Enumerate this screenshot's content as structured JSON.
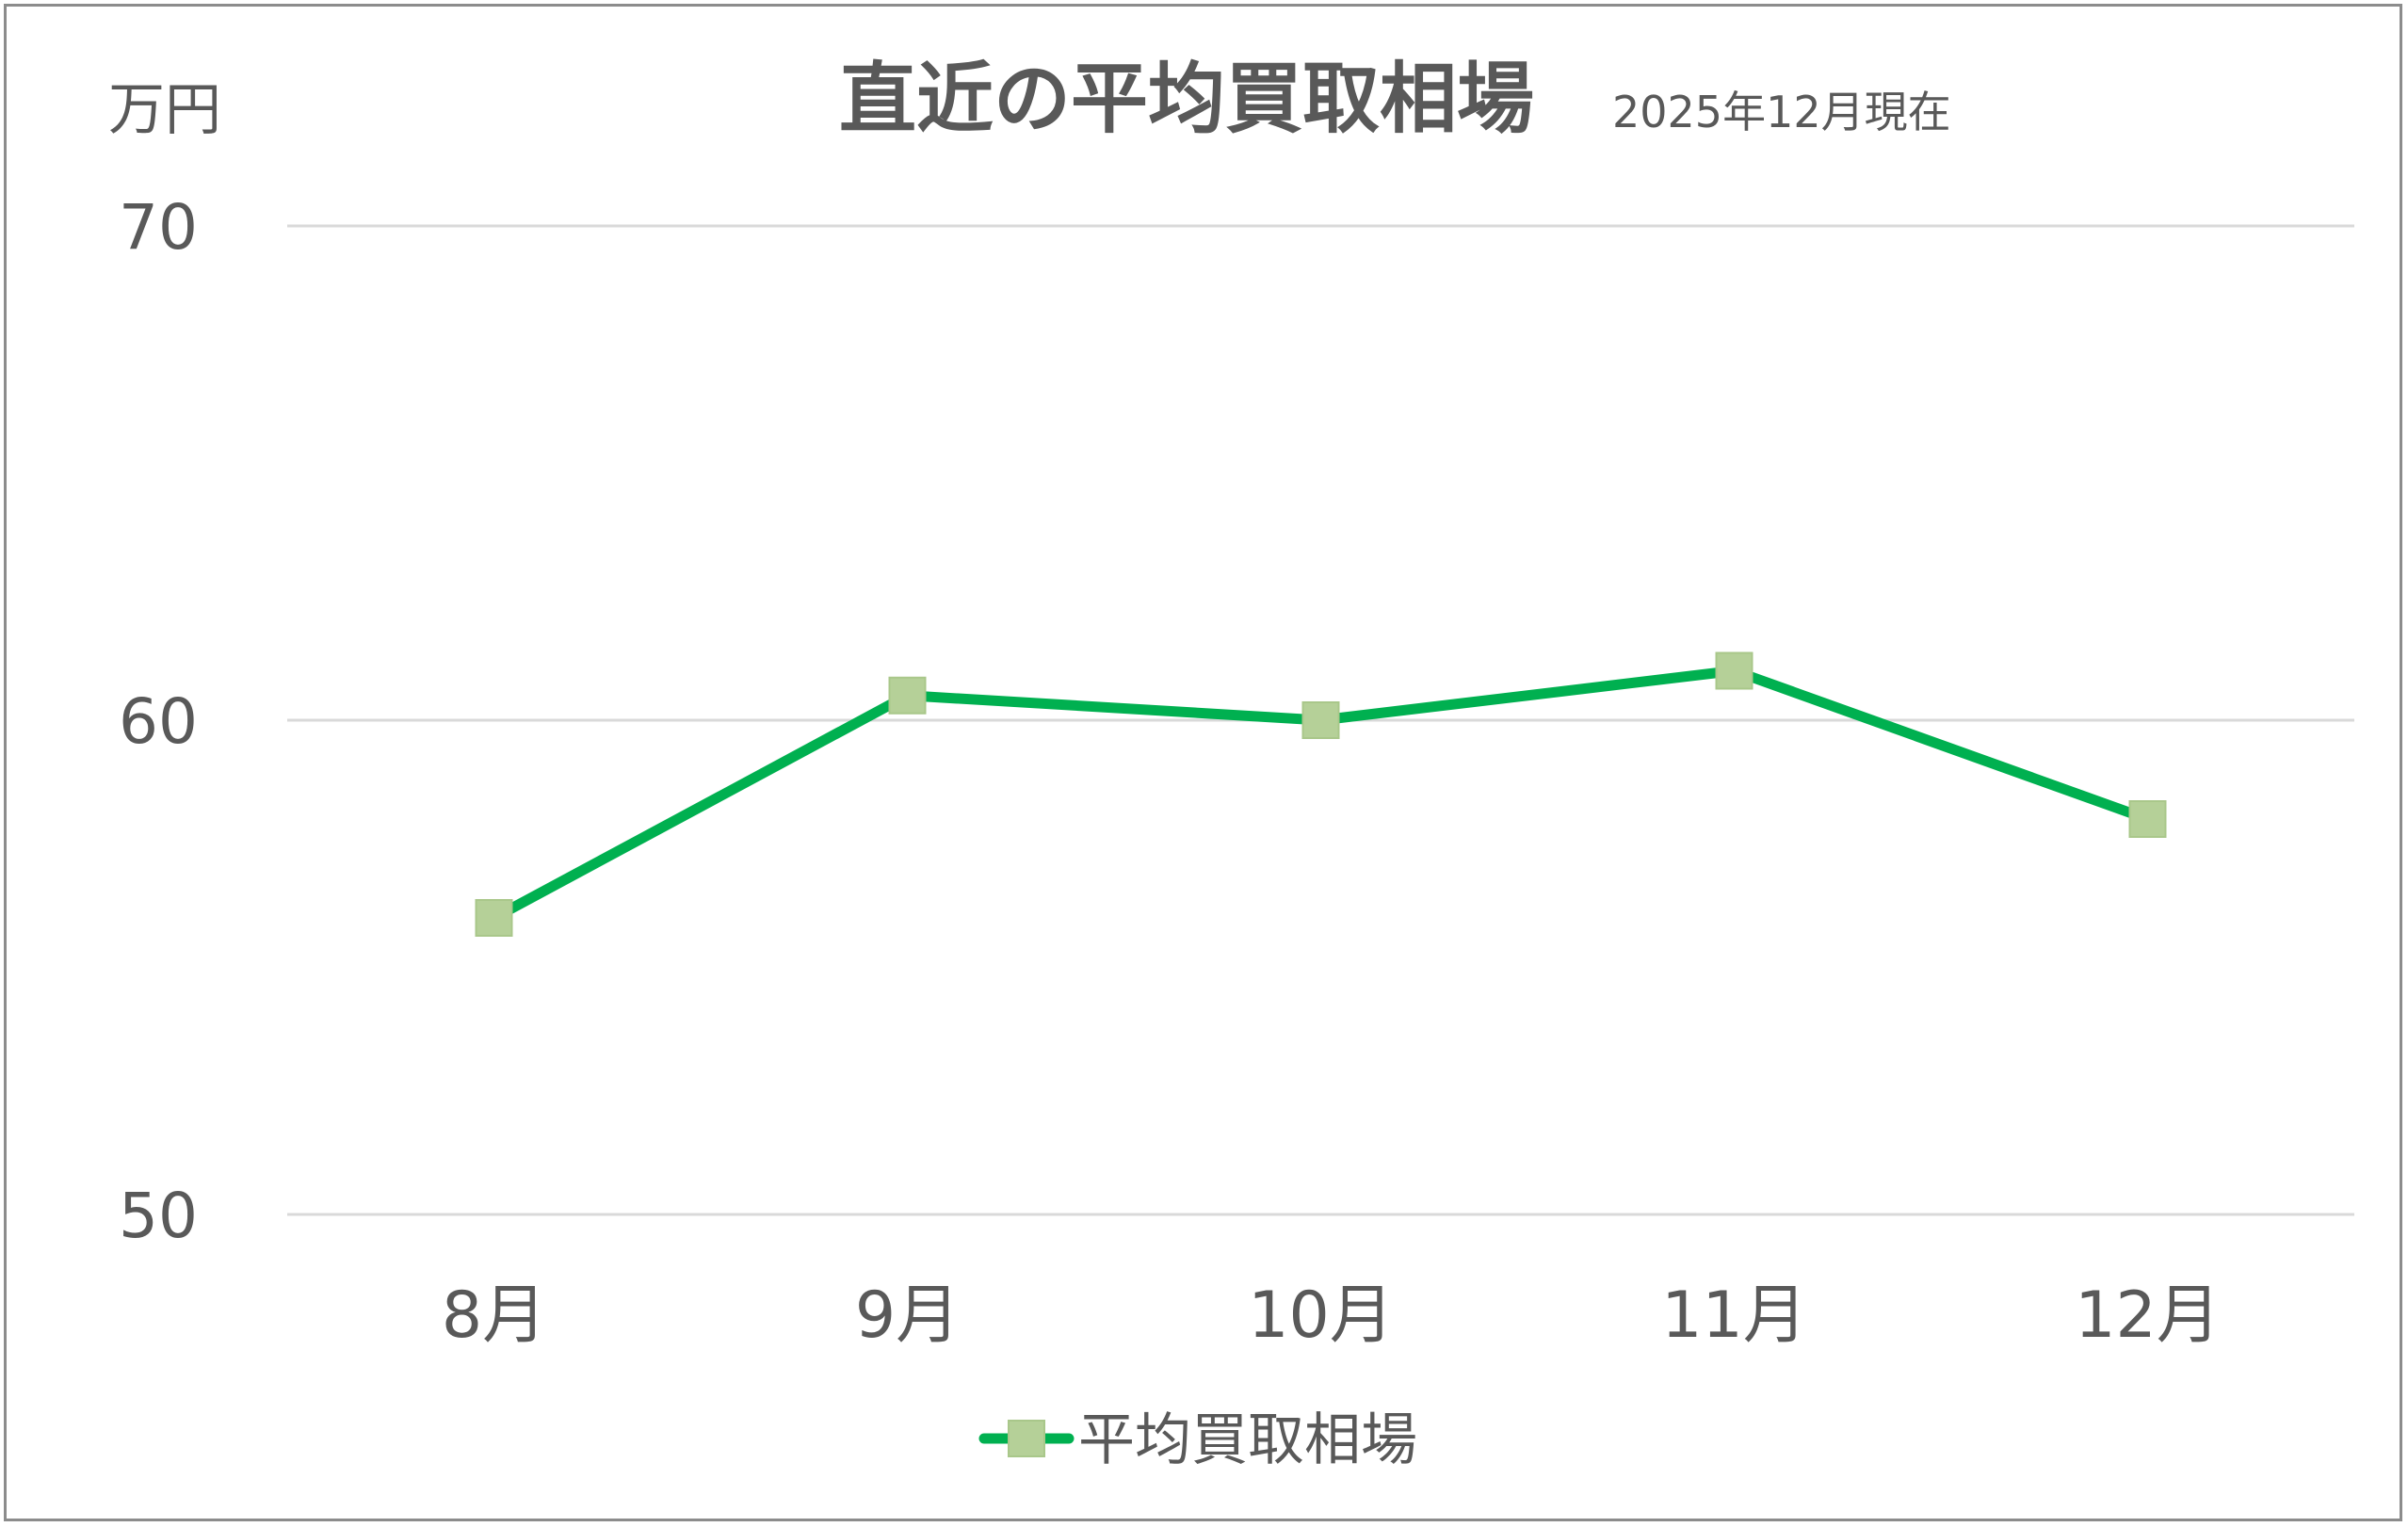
{
  "chart_data": {
    "type": "line",
    "title": "直近の平均買取相場",
    "subtitle": "2025年12月現在",
    "ylabel": "万円",
    "xlabel": "",
    "categories": [
      "8月",
      "9月",
      "10月",
      "11月",
      "12月"
    ],
    "series": [
      {
        "name": "平均買取相場",
        "values": [
          56,
          60.5,
          60,
          61,
          58
        ]
      }
    ],
    "ylim": [
      50,
      70
    ],
    "yticks": [
      "50",
      "60",
      "70"
    ],
    "ytick_values": [
      50,
      60,
      70
    ],
    "grid": true,
    "legend": "bottom-center",
    "line_color": "#00b050",
    "marker_color": "#b5d098",
    "marker_shape": "square",
    "grid_color": "#d9d9d9",
    "text_color": "#595959"
  }
}
